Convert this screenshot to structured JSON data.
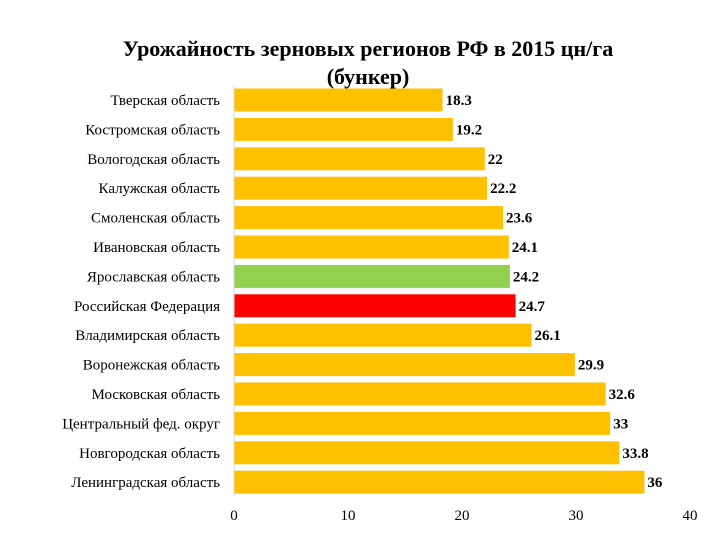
{
  "chart_data": {
    "type": "bar",
    "orientation": "horizontal",
    "title_lines": [
      "Урожайность зерновых регионов РФ в 2015 цн/га",
      "(бункер)"
    ],
    "categories": [
      "Тверская область",
      "Костромская область",
      "Вологодская область",
      "Калужская область",
      "Смоленская область",
      "Ивановская область",
      "Ярославская область",
      "Российская Федерация",
      "Владимирская область",
      "Воронежская область",
      "Московская область",
      "Центральный фед. округ",
      "Новгородская область",
      "Ленинградская область"
    ],
    "values": [
      18.3,
      19.2,
      22,
      22.2,
      23.6,
      24.1,
      24.2,
      24.7,
      26.1,
      29.9,
      32.6,
      33,
      33.8,
      36
    ],
    "value_labels": [
      "18.3",
      "19.2",
      "22",
      "22.2",
      "23.6",
      "24.1",
      "24.2",
      "24.7",
      "26.1",
      "29.9",
      "32.6",
      "33",
      "33.8",
      "36"
    ],
    "bar_colors": [
      "#FFC000",
      "#FFC000",
      "#FFC000",
      "#FFC000",
      "#FFC000",
      "#FFC000",
      "#92D050",
      "#FF0000",
      "#FFC000",
      "#FFC000",
      "#FFC000",
      "#FFC000",
      "#FFC000",
      "#FFC000"
    ],
    "xlim": [
      0,
      40
    ],
    "xticks": [
      0,
      10,
      20,
      30,
      40
    ],
    "xtick_labels": [
      "0",
      "10",
      "20",
      "30",
      "40"
    ],
    "xlabel": "",
    "ylabel": "",
    "grid": false,
    "legend": "none"
  }
}
